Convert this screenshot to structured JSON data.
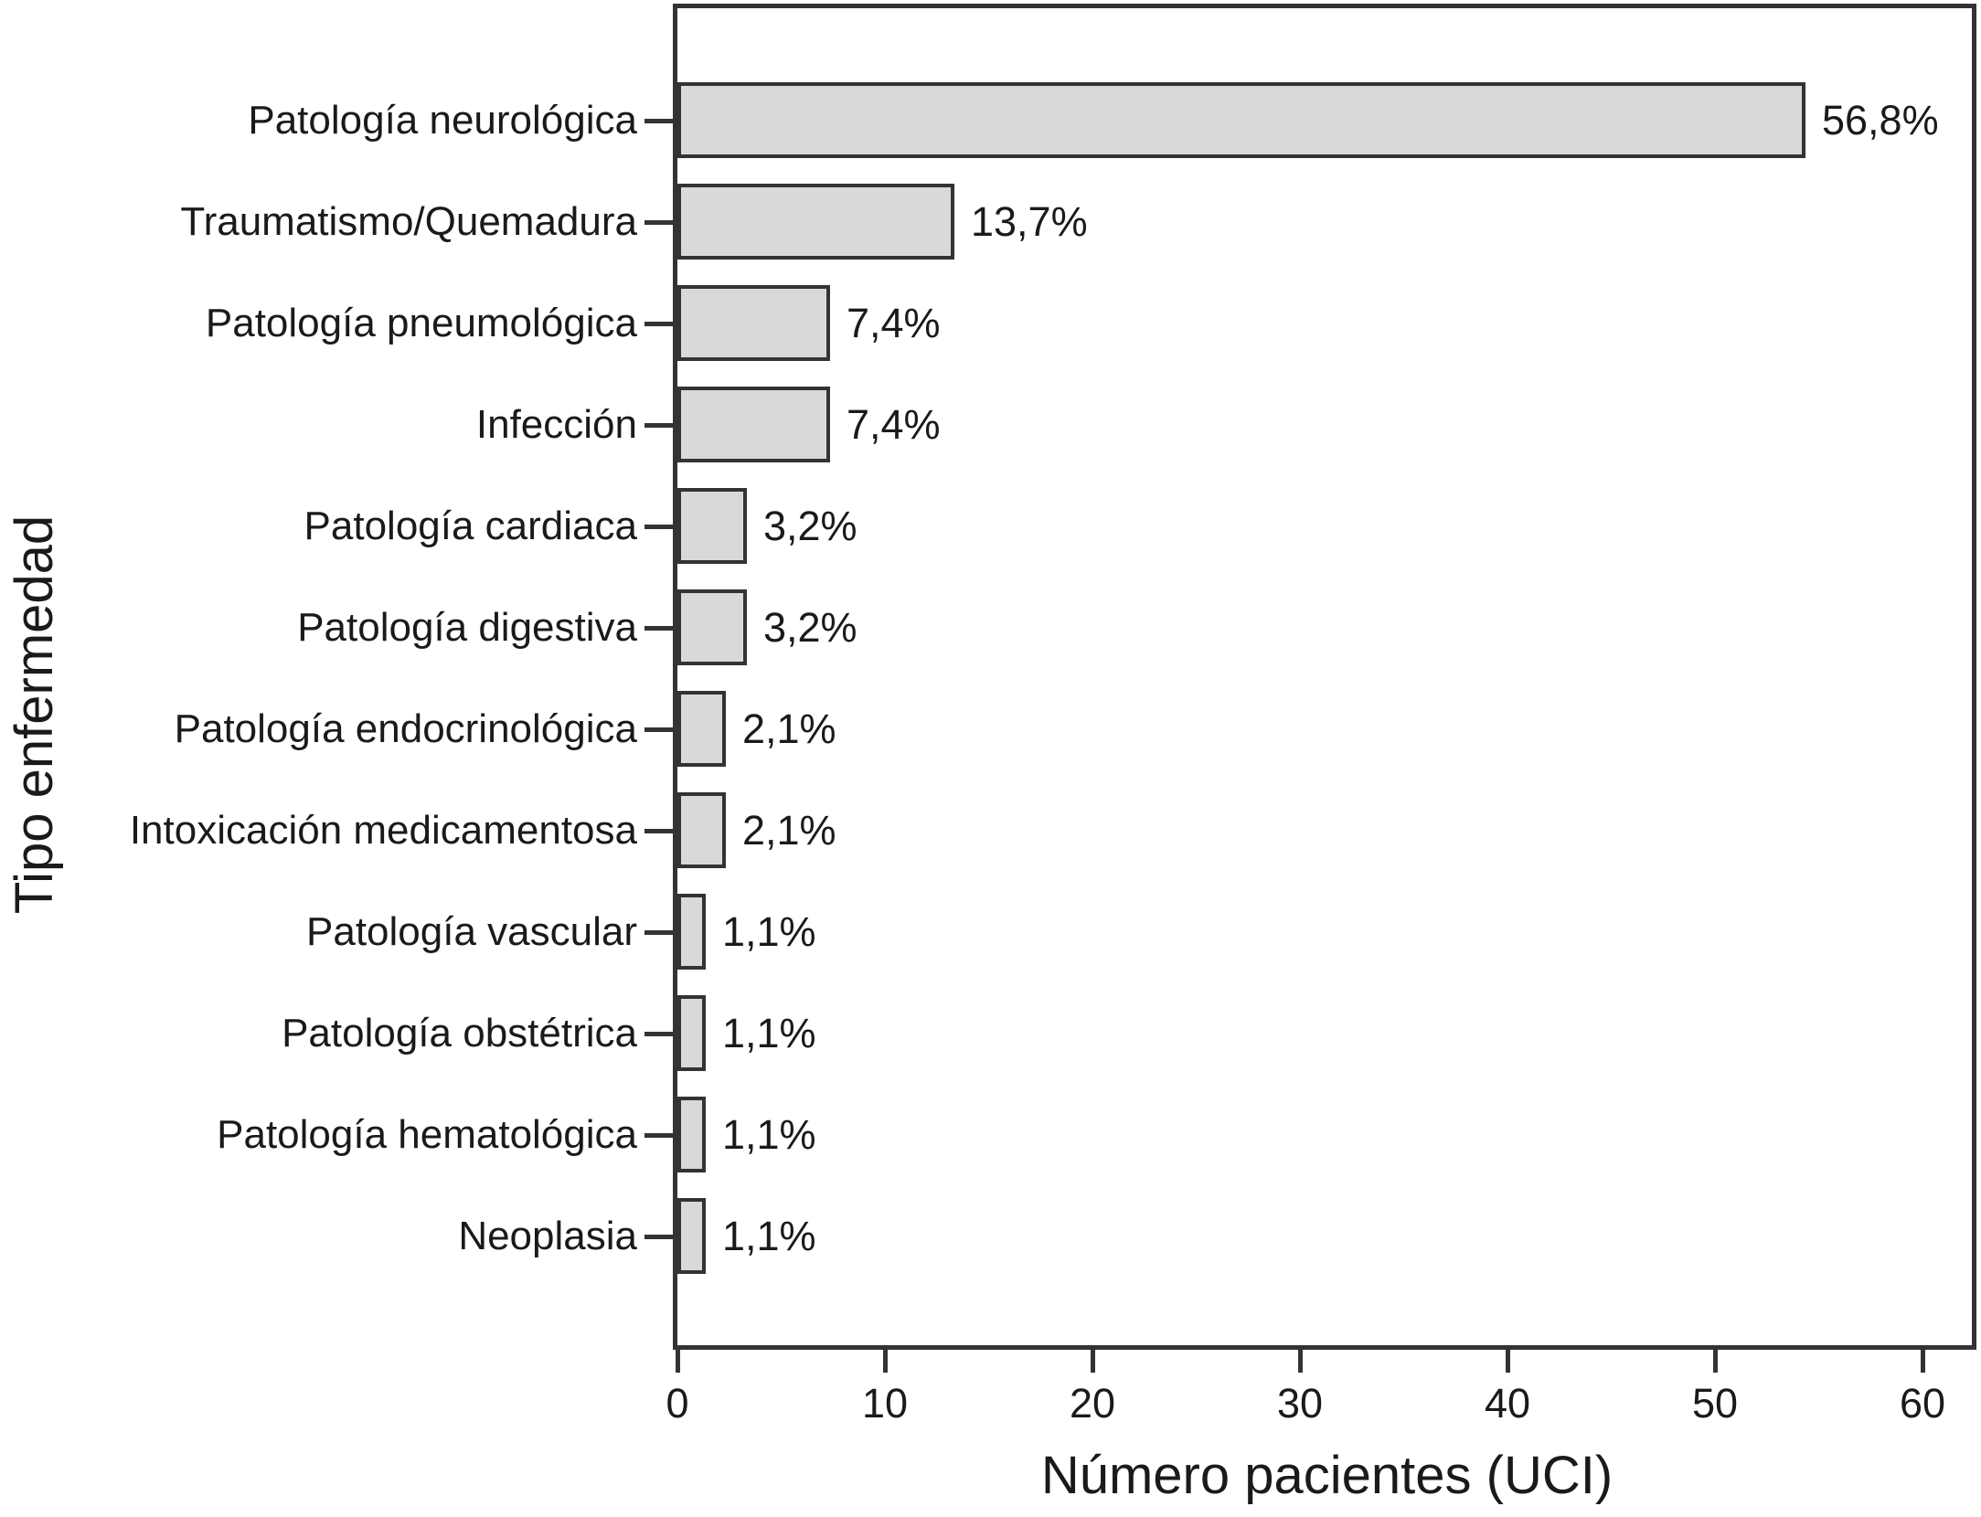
{
  "chart_data": {
    "type": "bar",
    "orientation": "horizontal",
    "xlabel": "Número pacientes (UCI)",
    "ylabel": "Tipo enfermedad",
    "categories": [
      "Patología neurológica",
      "Traumatismo/Quemadura",
      "Patología pneumológica",
      "Infección",
      "Patología cardiaca",
      "Patología digestiva",
      "Patología endocrinológica",
      "Intoxicación medicamentosa",
      "Patología vascular",
      "Patología obstétrica",
      "Patología hematológica",
      "Neoplasia"
    ],
    "values": [
      54,
      13,
      7,
      7,
      3,
      3,
      2,
      2,
      1,
      1,
      1,
      1
    ],
    "bar_labels": [
      "56,8%",
      "13,7%",
      "7,4%",
      "7,4%",
      "3,2%",
      "3,2%",
      "2,1%",
      "2,1%",
      "1,1%",
      "1,1%",
      "1,1%",
      "1,1%"
    ],
    "x_ticks": [
      0,
      10,
      20,
      30,
      40,
      50,
      60
    ],
    "x_tick_labels": [
      "0",
      "10",
      "20",
      "30",
      "40",
      "50",
      "60"
    ],
    "xlim": [
      0,
      62.5
    ],
    "grid": false,
    "legend": false,
    "colors": {
      "bar_fill": "#d9d9d9",
      "bar_border": "#333333",
      "axis": "#333333",
      "text": "#1a1a1a",
      "background": "#ffffff"
    }
  }
}
